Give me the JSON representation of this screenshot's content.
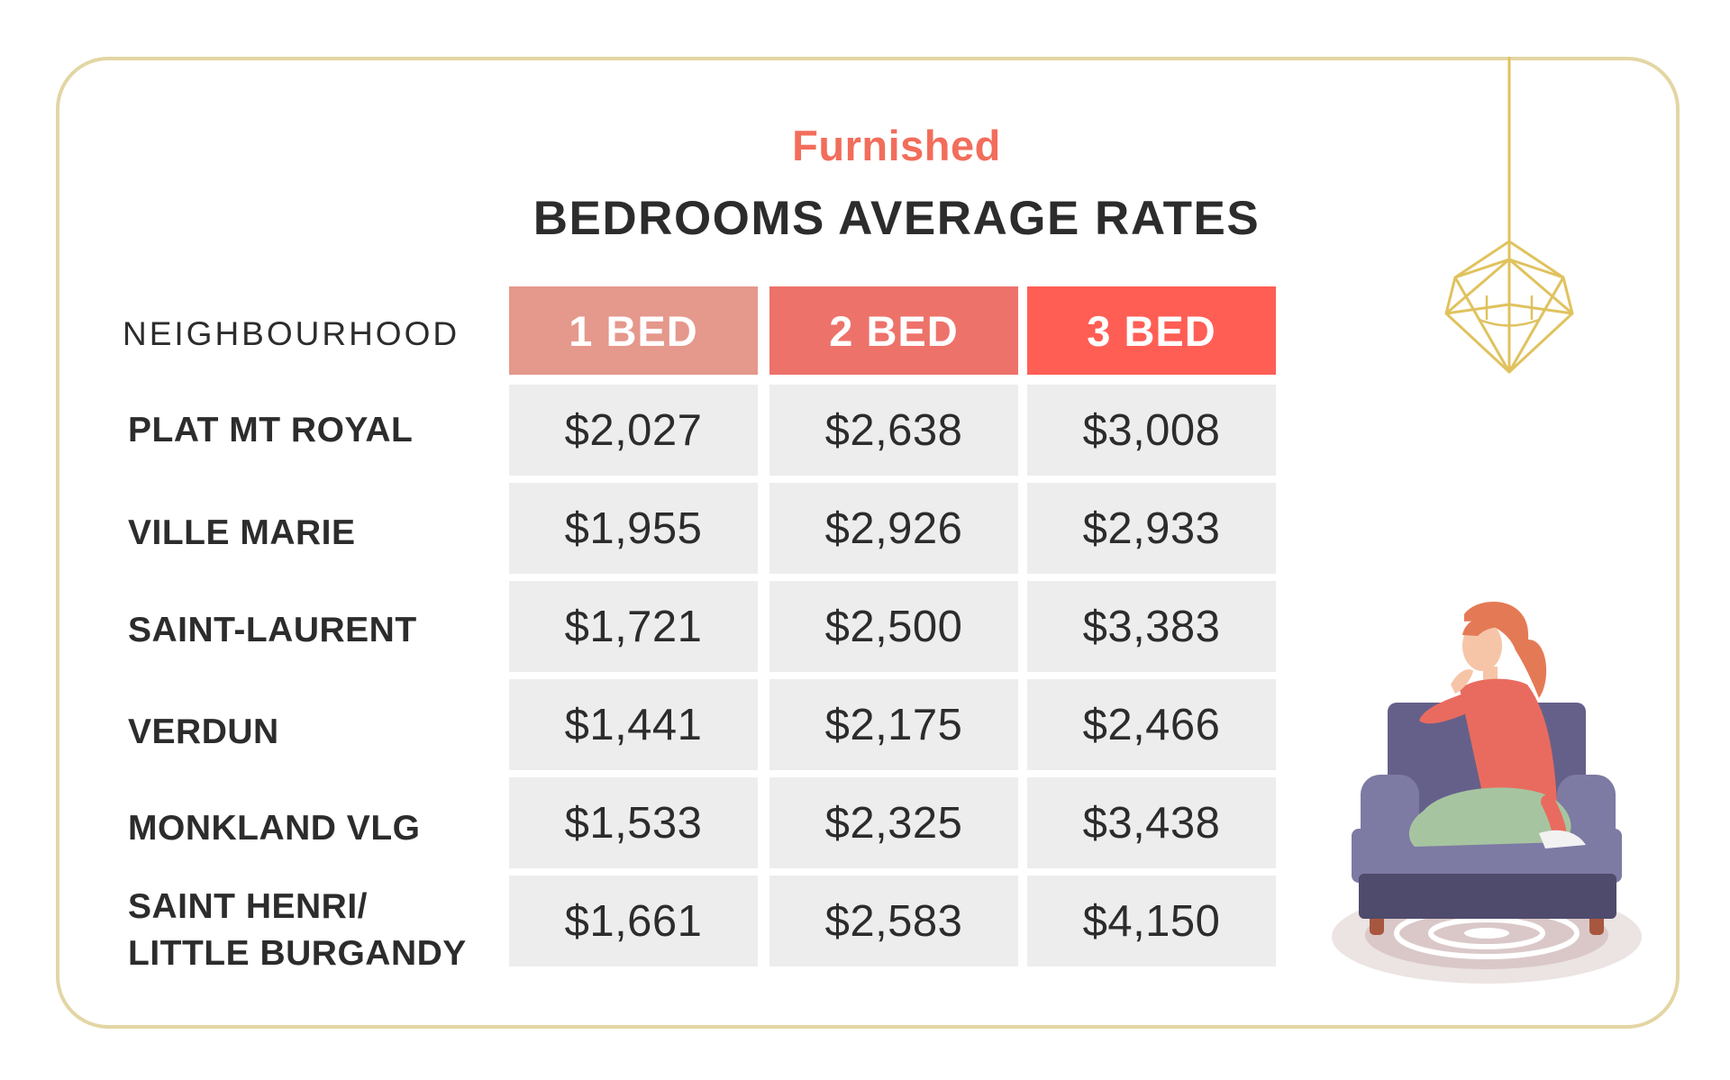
{
  "chart_data": {
    "type": "table",
    "subtitle": "Furnished",
    "title": "BEDROOMS AVERAGE RATES",
    "row_header": "NEIGHBOURHOOD",
    "columns": [
      "1 BED",
      "2 BED",
      "3 BED"
    ],
    "column_colors": [
      "#e5988c",
      "#ed726a",
      "#ff5e55"
    ],
    "rows": [
      {
        "label": "PLAT MT ROYAL",
        "values": [
          "$2,027",
          "$2,638",
          "$3,008"
        ]
      },
      {
        "label": "VILLE MARIE",
        "values": [
          "$1,955",
          "$2,926",
          "$2,933"
        ]
      },
      {
        "label": "SAINT-LAURENT",
        "values": [
          "$1,721",
          "$2,500",
          "$3,383"
        ]
      },
      {
        "label": "VERDUN",
        "values": [
          "$1,441",
          "$2,175",
          "$2,466"
        ]
      },
      {
        "label": "MONKLAND VLG",
        "values": [
          "$1,533",
          "$2,325",
          "$3,438"
        ]
      },
      {
        "label": "SAINT HENRI/\nLITTLE BURGANDY",
        "values": [
          "$1,661",
          "$2,583",
          "$4,150"
        ]
      }
    ]
  },
  "colors": {
    "border": "#e3d6a4",
    "accent": "#f26d5b",
    "text": "#2c2c2c",
    "cell_bg": "#ededee"
  },
  "illustrations": {
    "chandelier": "gold-geometric-chandelier-icon",
    "person": "woman-sitting-on-armchair-illustration"
  }
}
